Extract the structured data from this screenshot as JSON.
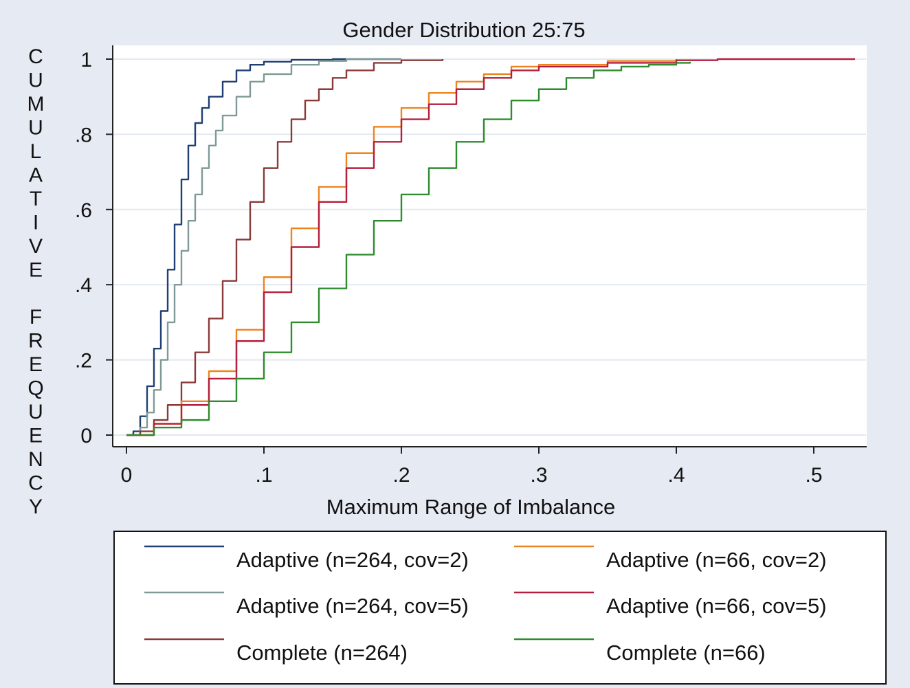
{
  "chart_data": {
    "type": "line",
    "title": "Gender Distribution 25:75",
    "xlabel": "Maximum Range of Imbalance",
    "ylabel": "CUMULATIVE FREQUENCY",
    "xlim": [
      0,
      0.54
    ],
    "ylim": [
      0,
      1
    ],
    "x_ticks": [
      {
        "value": 0,
        "label": "0"
      },
      {
        "value": 0.1,
        "label": ".1"
      },
      {
        "value": 0.2,
        "label": ".2"
      },
      {
        "value": 0.3,
        "label": ".3"
      },
      {
        "value": 0.4,
        "label": ".4"
      },
      {
        "value": 0.5,
        "label": ".5"
      }
    ],
    "y_ticks": [
      {
        "value": 0,
        "label": "0"
      },
      {
        "value": 0.2,
        "label": ".2"
      },
      {
        "value": 0.4,
        "label": ".4"
      },
      {
        "value": 0.6,
        "label": ".6"
      },
      {
        "value": 0.8,
        "label": ".8"
      },
      {
        "value": 1,
        "label": "1"
      }
    ],
    "grid": true,
    "legend_position": "bottom",
    "series": [
      {
        "name": "Adaptive (n=264, cov=2)",
        "color": "#1f3f73",
        "x": [
          0,
          0.005,
          0.01,
          0.015,
          0.02,
          0.025,
          0.03,
          0.035,
          0.04,
          0.045,
          0.05,
          0.055,
          0.06,
          0.07,
          0.08,
          0.09,
          0.1,
          0.12,
          0.15,
          0.2
        ],
        "y": [
          0,
          0.01,
          0.05,
          0.13,
          0.23,
          0.33,
          0.44,
          0.56,
          0.68,
          0.77,
          0.83,
          0.87,
          0.9,
          0.94,
          0.97,
          0.985,
          0.993,
          0.998,
          1,
          1
        ]
      },
      {
        "name": "Adaptive (n=264, cov=5)",
        "color": "#7f9a96",
        "x": [
          0,
          0.01,
          0.015,
          0.02,
          0.025,
          0.03,
          0.035,
          0.04,
          0.045,
          0.05,
          0.055,
          0.06,
          0.065,
          0.07,
          0.08,
          0.09,
          0.1,
          0.12,
          0.14,
          0.16,
          0.2
        ],
        "y": [
          0,
          0.02,
          0.06,
          0.12,
          0.2,
          0.3,
          0.4,
          0.49,
          0.57,
          0.64,
          0.71,
          0.77,
          0.81,
          0.85,
          0.9,
          0.94,
          0.96,
          0.985,
          0.995,
          1,
          1
        ]
      },
      {
        "name": "Complete (n=264)",
        "color": "#8b3a3a",
        "x": [
          0,
          0.01,
          0.02,
          0.03,
          0.04,
          0.05,
          0.06,
          0.07,
          0.08,
          0.09,
          0.1,
          0.11,
          0.12,
          0.13,
          0.14,
          0.15,
          0.16,
          0.18,
          0.2,
          0.23
        ],
        "y": [
          0,
          0.01,
          0.04,
          0.08,
          0.14,
          0.22,
          0.31,
          0.41,
          0.52,
          0.62,
          0.71,
          0.78,
          0.84,
          0.89,
          0.92,
          0.95,
          0.97,
          0.99,
          0.997,
          1
        ]
      },
      {
        "name": "Adaptive (n=66, cov=2)",
        "color": "#ee8420",
        "x": [
          0,
          0.02,
          0.04,
          0.06,
          0.08,
          0.1,
          0.12,
          0.14,
          0.16,
          0.18,
          0.2,
          0.22,
          0.24,
          0.26,
          0.28,
          0.3,
          0.35,
          0.4
        ],
        "y": [
          0,
          0.03,
          0.09,
          0.17,
          0.28,
          0.42,
          0.55,
          0.66,
          0.75,
          0.82,
          0.87,
          0.91,
          0.94,
          0.96,
          0.98,
          0.985,
          0.995,
          1
        ]
      },
      {
        "name": "Adaptive (n=66, cov=5)",
        "color": "#b51f3e",
        "x": [
          0,
          0.02,
          0.04,
          0.06,
          0.08,
          0.1,
          0.12,
          0.14,
          0.16,
          0.18,
          0.2,
          0.22,
          0.24,
          0.26,
          0.28,
          0.3,
          0.35,
          0.4,
          0.43,
          0.53
        ],
        "y": [
          0,
          0.03,
          0.08,
          0.15,
          0.25,
          0.38,
          0.5,
          0.62,
          0.71,
          0.78,
          0.84,
          0.88,
          0.92,
          0.95,
          0.97,
          0.98,
          0.99,
          0.997,
          1,
          1
        ]
      },
      {
        "name": "Complete (n=66)",
        "color": "#2e8b2e",
        "x": [
          0,
          0.02,
          0.04,
          0.06,
          0.08,
          0.1,
          0.12,
          0.14,
          0.16,
          0.18,
          0.2,
          0.22,
          0.24,
          0.26,
          0.28,
          0.3,
          0.32,
          0.34,
          0.36,
          0.38,
          0.4,
          0.41
        ],
        "y": [
          0,
          0.02,
          0.04,
          0.09,
          0.15,
          0.22,
          0.3,
          0.39,
          0.48,
          0.57,
          0.64,
          0.71,
          0.78,
          0.84,
          0.89,
          0.92,
          0.95,
          0.97,
          0.98,
          0.985,
          0.99,
          0.993
        ]
      }
    ]
  }
}
